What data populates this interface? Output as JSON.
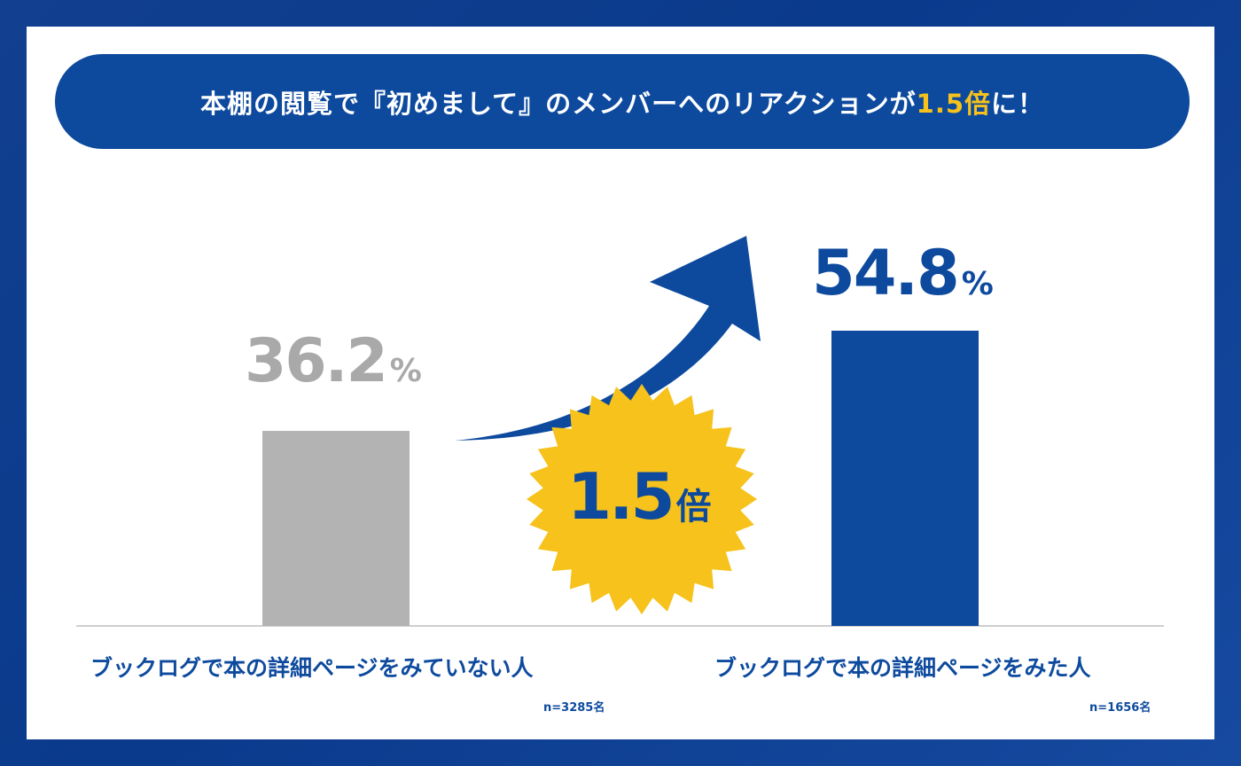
{
  "banner": {
    "text_before": "本棚の閲覧で『初めまして』のメンバーへのリアクションが",
    "highlight": "1.5倍",
    "text_after": "に！"
  },
  "badge": {
    "value": "1.5",
    "unit": "倍"
  },
  "colors": {
    "background": "#0a3a8c",
    "accent_blue": "#0d4a9e",
    "bar_gray": "#b3b3b3",
    "highlight_yellow": "#f6c21b"
  },
  "chart_data": {
    "type": "bar",
    "categories": [
      "ブックログで本の詳細ページをみていない人",
      "ブックログで本の詳細ページをみた人"
    ],
    "values": [
      36.2,
      54.8
    ],
    "value_labels": [
      {
        "number": "36.2",
        "unit": "%"
      },
      {
        "number": "54.8",
        "unit": "%"
      }
    ],
    "sample_sizes": [
      "n=3285名",
      "n=1656名"
    ],
    "bar_colors": [
      "#b3b3b3",
      "#0d4a9e"
    ],
    "grid": false
  }
}
